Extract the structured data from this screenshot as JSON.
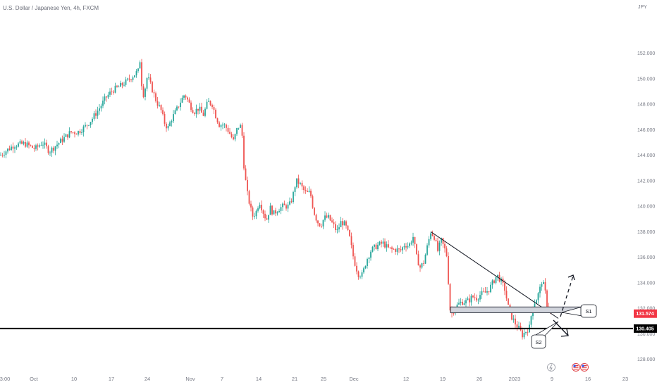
{
  "chart_data": {
    "type": "candlestick",
    "title": "U.S. Dollar / Japanese Yen, 4h, FXCM",
    "currency": "JPY",
    "ylim": [
      127.2,
      153.5
    ],
    "x_ticks": [
      "3:00",
      "Oct",
      "10",
      "17",
      "24",
      "Nov",
      "7",
      "14",
      "21",
      "25",
      "Dec",
      "12",
      "19",
      "26",
      "2023",
      "9",
      "16",
      "23"
    ],
    "y_ticks": [
      "128.000",
      "130.000",
      "132.000",
      "134.000",
      "136.000",
      "138.000",
      "140.000",
      "142.000",
      "144.000",
      "146.000",
      "148.000",
      "150.000",
      "152.000"
    ],
    "current_price": "131.574",
    "horizontal_line_price": "130.405",
    "anchors": [
      [
        0,
        144.0
      ],
      [
        20,
        144.8
      ],
      [
        35,
        144.9
      ],
      [
        50,
        144.5
      ],
      [
        60,
        145.0
      ],
      [
        70,
        144.3
      ],
      [
        80,
        144.8
      ],
      [
        90,
        145.3
      ],
      [
        100,
        145.8
      ],
      [
        110,
        145.8
      ],
      [
        120,
        146.2
      ],
      [
        130,
        146.8
      ],
      [
        140,
        147.6
      ],
      [
        150,
        148.5
      ],
      [
        160,
        149.1
      ],
      [
        170,
        149.4
      ],
      [
        180,
        149.8
      ],
      [
        190,
        150.3
      ],
      [
        196,
        150.6
      ],
      [
        199,
        151.6
      ],
      [
        202,
        148.6
      ],
      [
        205,
        149.0
      ],
      [
        209,
        150.2
      ],
      [
        215,
        149.3
      ],
      [
        222,
        148.2
      ],
      [
        228,
        147.6
      ],
      [
        233,
        146.6
      ],
      [
        238,
        146.1
      ],
      [
        243,
        146.8
      ],
      [
        250,
        147.5
      ],
      [
        256,
        148.2
      ],
      [
        262,
        148.8
      ],
      [
        268,
        148.1
      ],
      [
        275,
        147.4
      ],
      [
        282,
        147.7
      ],
      [
        288,
        147.1
      ],
      [
        295,
        148.2
      ],
      [
        301,
        148.0
      ],
      [
        306,
        147.1
      ],
      [
        311,
        146.4
      ],
      [
        317,
        146.4
      ],
      [
        322,
        146.1
      ],
      [
        327,
        145.6
      ],
      [
        331,
        145.1
      ],
      [
        336,
        146.0
      ],
      [
        340,
        146.4
      ],
      [
        343,
        146.0
      ],
      [
        346,
        143.2
      ],
      [
        350,
        141.2
      ],
      [
        354,
        140.2
      ],
      [
        358,
        139.2
      ],
      [
        363,
        139.5
      ],
      [
        368,
        140.4
      ],
      [
        373,
        139.6
      ],
      [
        378,
        138.9
      ],
      [
        383,
        139.9
      ],
      [
        388,
        139.4
      ],
      [
        395,
        139.8
      ],
      [
        402,
        140.0
      ],
      [
        410,
        140.0
      ],
      [
        415,
        140.7
      ],
      [
        420,
        142.0
      ],
      [
        425,
        141.8
      ],
      [
        430,
        141.3
      ],
      [
        435,
        141.0
      ],
      [
        440,
        141.1
      ],
      [
        445,
        139.6
      ],
      [
        450,
        138.8
      ],
      [
        455,
        138.5
      ],
      [
        460,
        139.1
      ],
      [
        466,
        139.1
      ],
      [
        472,
        138.6
      ],
      [
        478,
        138.0
      ],
      [
        484,
        138.8
      ],
      [
        490,
        138.5
      ],
      [
        496,
        137.5
      ],
      [
        502,
        135.8
      ],
      [
        508,
        134.7
      ],
      [
        514,
        134.6
      ],
      [
        520,
        135.8
      ],
      [
        526,
        136.5
      ],
      [
        532,
        136.8
      ],
      [
        538,
        137.0
      ],
      [
        544,
        137.1
      ],
      [
        550,
        136.7
      ],
      [
        556,
        136.6
      ],
      [
        562,
        136.6
      ],
      [
        568,
        136.5
      ],
      [
        574,
        137.0
      ],
      [
        580,
        136.9
      ],
      [
        586,
        137.6
      ],
      [
        591,
        136.0
      ],
      [
        596,
        135.2
      ],
      [
        601,
        135.6
      ],
      [
        606,
        136.8
      ],
      [
        611,
        138.0
      ],
      [
        616,
        137.6
      ],
      [
        621,
        136.5
      ],
      [
        626,
        137.3
      ],
      [
        631,
        136.6
      ],
      [
        635,
        135.9
      ],
      [
        637,
        132.3
      ],
      [
        640,
        131.5
      ],
      [
        645,
        132.0
      ],
      [
        650,
        132.3
      ],
      [
        655,
        132.5
      ],
      [
        660,
        132.5
      ],
      [
        665,
        132.6
      ],
      [
        670,
        132.9
      ],
      [
        676,
        132.8
      ],
      [
        682,
        133.1
      ],
      [
        688,
        133.2
      ],
      [
        694,
        133.5
      ],
      [
        700,
        134.1
      ],
      [
        705,
        134.6
      ],
      [
        710,
        134.2
      ],
      [
        716,
        133.5
      ],
      [
        721,
        132.1
      ],
      [
        726,
        131.3
      ],
      [
        731,
        130.8
      ],
      [
        736,
        130.4
      ],
      [
        741,
        129.9
      ],
      [
        746,
        130.2
      ],
      [
        751,
        130.5
      ],
      [
        756,
        132.3
      ],
      [
        760,
        132.6
      ],
      [
        765,
        133.3
      ],
      [
        769,
        134.2
      ],
      [
        773,
        133.4
      ],
      [
        776,
        132.3
      ],
      [
        780,
        131.8
      ],
      [
        784,
        131.57
      ]
    ],
    "annotations": [
      {
        "label": "S1"
      },
      {
        "label": "S2"
      }
    ]
  },
  "colors": {
    "up": "#26a69a",
    "down": "#ef5350",
    "current_price_bg": "#f23645",
    "line_black": "#000000",
    "axis_text": "#787b86",
    "zone_fill": "#d1d4dc"
  },
  "events": {
    "flash_icon": "lightning-icon",
    "flags": [
      "us-flag-icon",
      "us-flag-icon"
    ]
  }
}
